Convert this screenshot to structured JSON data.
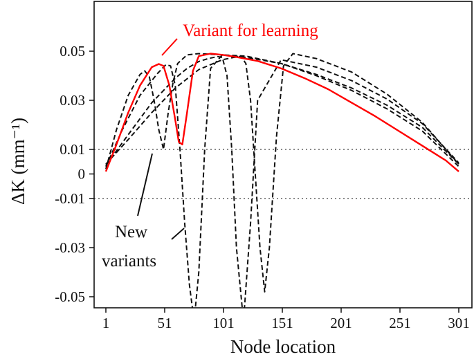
{
  "chart_data": {
    "type": "line",
    "xlabel": "Node location",
    "ylabel": "ΔK (mm⁻¹)",
    "xlim": [
      1,
      301
    ],
    "ylim": [
      -0.055,
      0.07
    ],
    "xticks": [
      1,
      51,
      101,
      151,
      201,
      251,
      301
    ],
    "yticks": [
      0.05,
      0.03,
      0.01,
      0,
      -0.01,
      -0.03,
      -0.05
    ],
    "ytick_labels": [
      "0.05",
      "0.03",
      "0.01",
      "0",
      "-0.01",
      "-0.03",
      "-0.05"
    ],
    "grid": false,
    "reference_lines": [
      0.01,
      -0.01
    ],
    "series": [
      {
        "color": "#ff0000",
        "style": "solid",
        "x": [
          1,
          10,
          20,
          30,
          40,
          46,
          50,
          55,
          60,
          63,
          66,
          70,
          75,
          80,
          90,
          100,
          110,
          130,
          150,
          170,
          190,
          210,
          230,
          250,
          270,
          290,
          301
        ],
        "y": [
          0.001,
          0.012,
          0.025,
          0.036,
          0.0435,
          0.0448,
          0.044,
          0.036,
          0.022,
          0.013,
          0.012,
          0.025,
          0.042,
          0.048,
          0.049,
          0.0485,
          0.0478,
          0.046,
          0.043,
          0.039,
          0.0345,
          0.029,
          0.0235,
          0.0175,
          0.0115,
          0.0055,
          0.001
        ]
      },
      {
        "color": "#111111",
        "style": "dashed",
        "x": [
          1,
          10,
          20,
          30,
          34,
          38,
          42,
          46,
          50,
          54,
          58,
          62,
          70,
          80,
          100,
          120,
          150,
          180,
          210,
          240,
          270,
          301
        ],
        "y": [
          0.002,
          0.018,
          0.032,
          0.0405,
          0.042,
          0.0395,
          0.03,
          0.018,
          0.01,
          0.025,
          0.037,
          0.045,
          0.0485,
          0.049,
          0.0485,
          0.0475,
          0.045,
          0.04,
          0.034,
          0.0265,
          0.0175,
          0.003
        ]
      },
      {
        "color": "#111111",
        "style": "dashed",
        "x": [
          1,
          15,
          30,
          45,
          52,
          56,
          60,
          64,
          68,
          72,
          76,
          80,
          85,
          90,
          100,
          120,
          150,
          180,
          210,
          240,
          270,
          301
        ],
        "y": [
          0.003,
          0.018,
          0.032,
          0.041,
          0.0445,
          0.044,
          0.036,
          0.01,
          -0.02,
          -0.045,
          -0.06,
          -0.04,
          0.01,
          0.043,
          0.0485,
          0.048,
          0.045,
          0.0405,
          0.035,
          0.028,
          0.019,
          0.004
        ]
      },
      {
        "color": "#111111",
        "style": "dashed",
        "x": [
          1,
          20,
          40,
          60,
          70,
          80,
          88,
          96,
          100,
          104,
          108,
          112,
          118,
          124,
          130,
          150,
          180,
          210,
          240,
          270,
          301
        ],
        "y": [
          0.0035,
          0.016,
          0.029,
          0.039,
          0.043,
          0.0458,
          0.047,
          0.0478,
          0.0475,
          0.04,
          0.01,
          -0.03,
          -0.06,
          -0.02,
          0.03,
          0.0465,
          0.0435,
          0.038,
          0.0305,
          0.0205,
          0.0045
        ]
      },
      {
        "color": "#111111",
        "style": "dashed",
        "x": [
          1,
          20,
          40,
          60,
          80,
          100,
          110,
          116,
          120,
          124,
          128,
          132,
          136,
          140,
          146,
          152,
          160,
          180,
          210,
          240,
          270,
          301
        ],
        "y": [
          0.004,
          0.014,
          0.025,
          0.035,
          0.0425,
          0.0465,
          0.0475,
          0.0478,
          0.045,
          0.03,
          0.0,
          -0.03,
          -0.048,
          -0.03,
          0.015,
          0.044,
          0.049,
          0.047,
          0.0415,
          0.0325,
          0.021,
          0.004
        ]
      }
    ],
    "annotations": [
      {
        "text": "Variant for learning",
        "color": "#ff0000"
      },
      {
        "text": "New",
        "color": "#111111"
      },
      {
        "text": "variants",
        "color": "#111111"
      }
    ]
  }
}
